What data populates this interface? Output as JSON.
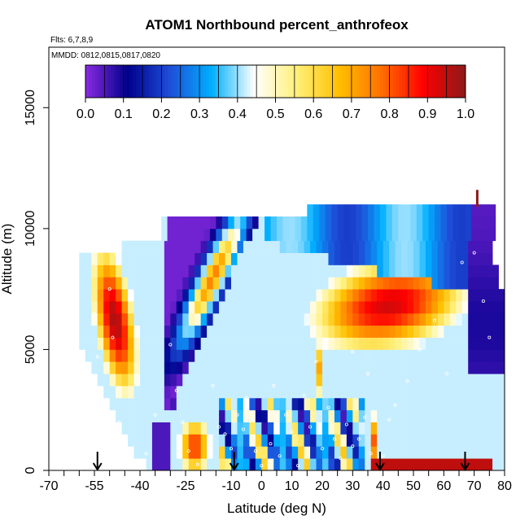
{
  "chart_data": {
    "type": "heatmap",
    "title": "ATOM1 Northbound percent_anthrofeox",
    "subtitle_flights": "Flts: 6,7,8,9",
    "subtitle_dates": "MMDD: 0812,0815,0817,0820",
    "xlabel": "Latitude (deg N)",
    "ylabel": "Altitude (m)",
    "xlim": [
      -70,
      80
    ],
    "ylim": [
      0,
      17500
    ],
    "x_ticks": [
      -70,
      -55,
      -40,
      -25,
      -10,
      0,
      10,
      20,
      30,
      40,
      50,
      60,
      70,
      80
    ],
    "x_tick_labels": [
      "-70",
      "-55",
      "-40",
      "-25",
      "-10",
      "0",
      "10",
      "20",
      "30",
      "40",
      "50",
      "60",
      "70",
      "80"
    ],
    "y_ticks": [
      0,
      5000,
      10000,
      15000
    ],
    "y_tick_labels": [
      "0",
      "5000",
      "10000",
      "15000"
    ],
    "colorbar": {
      "range": [
        0,
        1
      ],
      "tick_labels": [
        "0.0",
        "0.1",
        "0.2",
        "0.3",
        "0.4",
        "0.5",
        "0.6",
        "0.7",
        "0.8",
        "0.9",
        "1.0"
      ],
      "colors": [
        "#8a2be2",
        "#00008b",
        "#1e4ed8",
        "#00b0ff",
        "#ffffff",
        "#fff07a",
        "#ffc000",
        "#ff7000",
        "#ff0000",
        "#8b1a1a"
      ]
    },
    "arrow_latitudes": [
      -54,
      -9,
      39,
      67
    ],
    "sample_point_color": "#ffffff",
    "layer_altitudes": [
      250,
      750,
      1250,
      1750,
      2250,
      2750,
      3250,
      3750,
      4250,
      4750,
      5250,
      5750,
      6250,
      6750,
      7250,
      7750,
      8250,
      8750,
      9250,
      9750,
      10250,
      10750
    ],
    "layer_lat_ranges": [
      [
        -38,
        80
      ],
      [
        -42,
        80
      ],
      [
        -44,
        80
      ],
      [
        -46,
        80
      ],
      [
        -48,
        80
      ],
      [
        -50,
        80
      ],
      [
        -52,
        80
      ],
      [
        -54,
        80
      ],
      [
        -56,
        80
      ],
      [
        -58,
        80
      ],
      [
        -60,
        80
      ],
      [
        -60,
        80
      ],
      [
        -60,
        80
      ],
      [
        -60,
        80
      ],
      [
        -60,
        80
      ],
      [
        -60,
        78
      ],
      [
        -60,
        77
      ],
      [
        -60,
        76
      ],
      [
        -46,
        76
      ],
      [
        -33,
        76
      ],
      [
        -33,
        76
      ],
      [
        15,
        76
      ]
    ],
    "features": [
      {
        "name": "southern-plume",
        "lat_center": -48,
        "lat_width": 10,
        "alt_min": 3500,
        "alt_max": 9000,
        "value": 0.95
      },
      {
        "name": "upper-tropospheric-tongue",
        "lat_start": 5,
        "lat_end": 70,
        "alt_min": 3500,
        "alt_max": 9500,
        "value": 0.9
      },
      {
        "name": "southern-surface-plume",
        "lat_center": -22,
        "lat_width": 10,
        "alt_min": 0,
        "alt_max": 2500,
        "value": 0.85
      },
      {
        "name": "northern-boundary-layer",
        "lat_start": 35,
        "lat_end": 75,
        "alt_min": 0,
        "alt_max": 700,
        "value": 0.92
      },
      {
        "name": "southern-tropics-clean",
        "lat_start": -30,
        "lat_end": 5,
        "alt_min": 3000,
        "alt_max": 10000,
        "value": 0.0
      },
      {
        "name": "arctic-clean",
        "lat_start": 70,
        "lat_end": 80,
        "alt_min": 4000,
        "alt_max": 11000,
        "value": 0.05
      }
    ]
  }
}
